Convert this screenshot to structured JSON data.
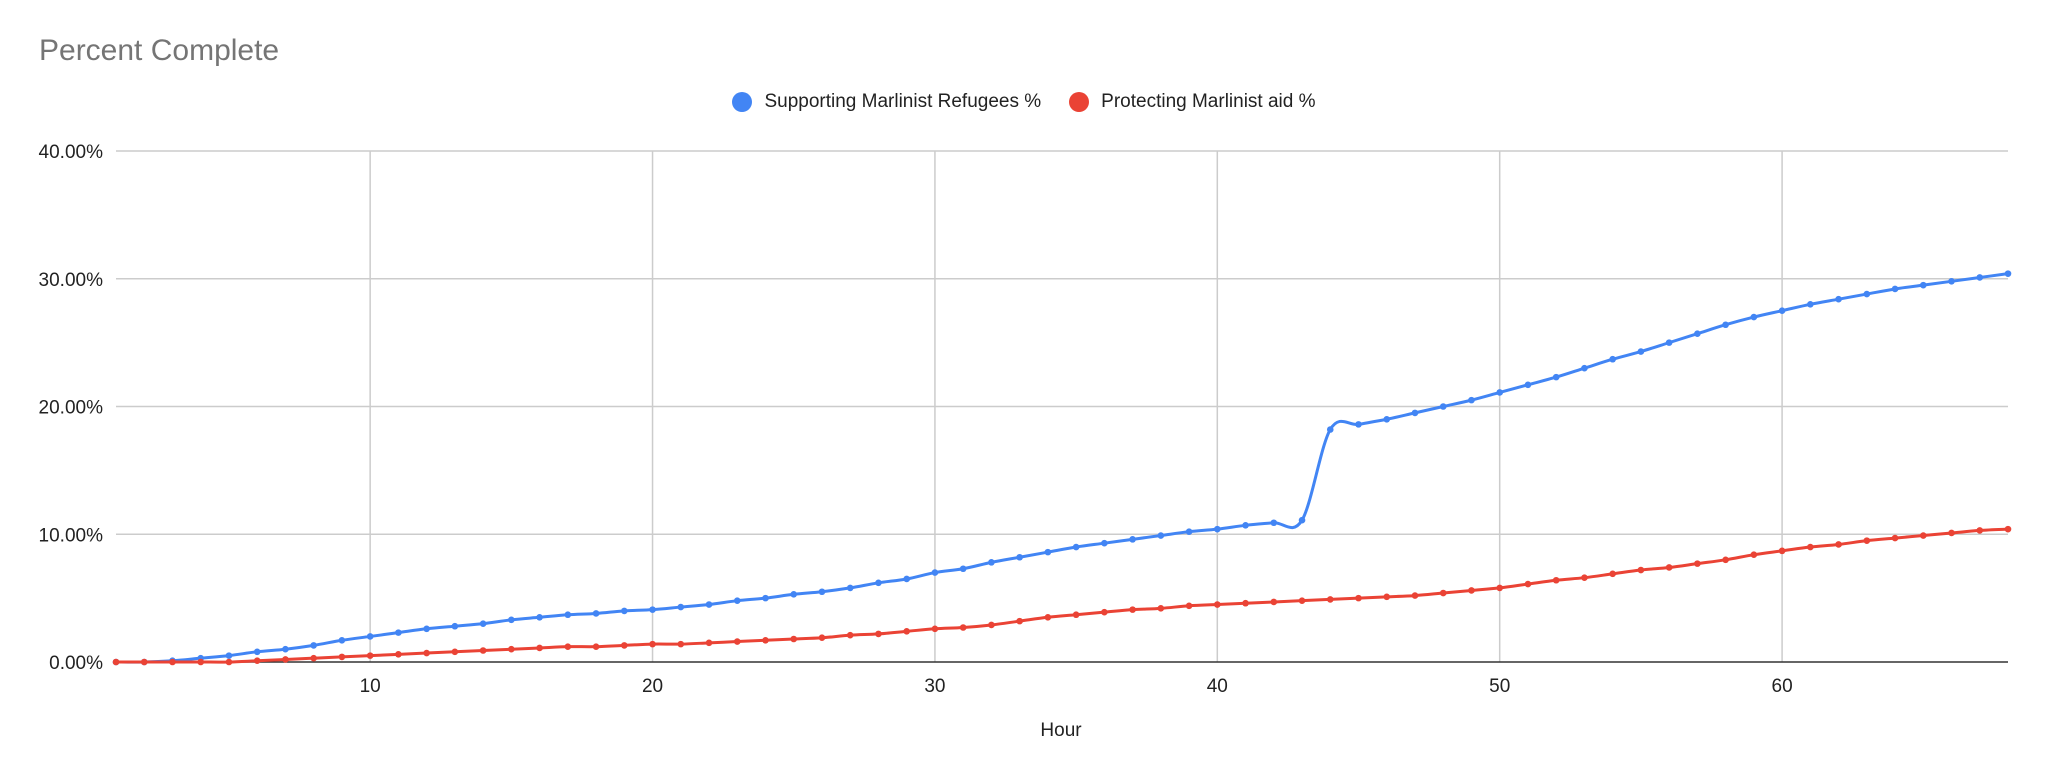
{
  "chart_data": {
    "type": "line",
    "title": "Percent Complete",
    "xlabel": "Hour",
    "ylabel": "",
    "xlim": [
      1,
      68
    ],
    "ylim": [
      0,
      0.4
    ],
    "x_ticks": [
      10,
      20,
      30,
      40,
      50,
      60
    ],
    "y_ticks": [
      0,
      0.1,
      0.2,
      0.3,
      0.4
    ],
    "y_tick_labels": [
      "0.00%",
      "10.00%",
      "20.00%",
      "30.00%",
      "40.00%"
    ],
    "grid": true,
    "legend_position": "top",
    "x": [
      1,
      2,
      3,
      4,
      5,
      6,
      7,
      8,
      9,
      10,
      11,
      12,
      13,
      14,
      15,
      16,
      17,
      18,
      19,
      20,
      21,
      22,
      23,
      24,
      25,
      26,
      27,
      28,
      29,
      30,
      31,
      32,
      33,
      34,
      35,
      36,
      37,
      38,
      39,
      40,
      41,
      42,
      43,
      44,
      45,
      46,
      47,
      48,
      49,
      50,
      51,
      52,
      53,
      54,
      55,
      56,
      57,
      58,
      59,
      60,
      61,
      62,
      63,
      64,
      65,
      66,
      67,
      68
    ],
    "series": [
      {
        "name": "Supporting Marlinist Refugees %",
        "color": "#4285f4",
        "values": [
          0.0,
          0.0,
          0.001,
          0.003,
          0.005,
          0.008,
          0.01,
          0.013,
          0.017,
          0.02,
          0.023,
          0.026,
          0.028,
          0.03,
          0.033,
          0.035,
          0.037,
          0.038,
          0.04,
          0.041,
          0.043,
          0.045,
          0.048,
          0.05,
          0.053,
          0.055,
          0.058,
          0.062,
          0.065,
          0.07,
          0.073,
          0.078,
          0.082,
          0.086,
          0.09,
          0.093,
          0.096,
          0.099,
          0.102,
          0.104,
          0.107,
          0.109,
          0.111,
          0.182,
          0.186,
          0.19,
          0.195,
          0.2,
          0.205,
          0.211,
          0.217,
          0.223,
          0.23,
          0.237,
          0.243,
          0.25,
          0.257,
          0.264,
          0.27,
          0.275,
          0.28,
          0.284,
          0.288,
          0.292,
          0.295,
          0.298,
          0.301,
          0.304
        ]
      },
      {
        "name": "Protecting Marlinist aid %",
        "color": "#ea4335",
        "values": [
          0.0,
          0.0,
          0.0,
          0.0,
          0.0,
          0.001,
          0.002,
          0.003,
          0.004,
          0.005,
          0.006,
          0.007,
          0.008,
          0.009,
          0.01,
          0.011,
          0.012,
          0.012,
          0.013,
          0.014,
          0.014,
          0.015,
          0.016,
          0.017,
          0.018,
          0.019,
          0.021,
          0.022,
          0.024,
          0.026,
          0.027,
          0.029,
          0.032,
          0.035,
          0.037,
          0.039,
          0.041,
          0.042,
          0.044,
          0.045,
          0.046,
          0.047,
          0.048,
          0.049,
          0.05,
          0.051,
          0.052,
          0.054,
          0.056,
          0.058,
          0.061,
          0.064,
          0.066,
          0.069,
          0.072,
          0.074,
          0.077,
          0.08,
          0.084,
          0.087,
          0.09,
          0.092,
          0.095,
          0.097,
          0.099,
          0.101,
          0.103,
          0.104
        ]
      }
    ]
  }
}
